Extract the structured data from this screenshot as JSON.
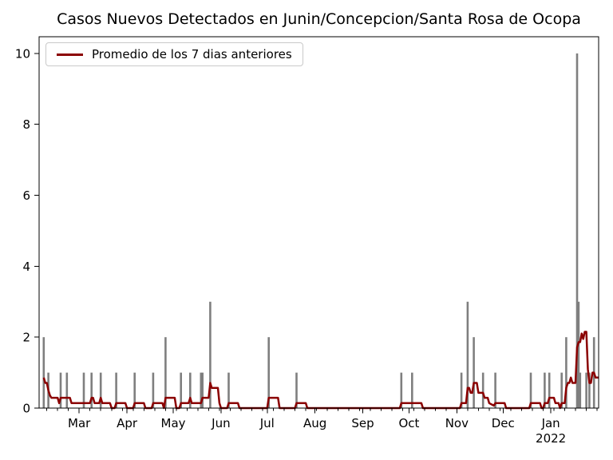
{
  "chart_data": {
    "type": "bar+line",
    "title": "Casos Nuevos Detectados en Junin/Concepcion/Santa Rosa de Ocopa",
    "legend": {
      "position": "upper left",
      "entries": [
        "Promedio de los 7 dias anteriores"
      ]
    },
    "grid": false,
    "x_axis": {
      "start": "2021-02-03",
      "end": "2022-02-01",
      "minor_tick_start": "2021-02-08",
      "minor_tick_interval_days": 7,
      "month_ticks": [
        {
          "date": "2021-03-01",
          "label": "Mar"
        },
        {
          "date": "2021-04-01",
          "label": "Apr"
        },
        {
          "date": "2021-05-01",
          "label": "May"
        },
        {
          "date": "2021-06-01",
          "label": "Jun"
        },
        {
          "date": "2021-07-01",
          "label": "Jul"
        },
        {
          "date": "2021-08-01",
          "label": "Aug"
        },
        {
          "date": "2021-09-01",
          "label": "Sep"
        },
        {
          "date": "2021-10-01",
          "label": "Oct"
        },
        {
          "date": "2021-11-01",
          "label": "Nov"
        },
        {
          "date": "2021-12-01",
          "label": "Dec"
        },
        {
          "date": "2022-01-01",
          "label": "Jan",
          "sublabel": "2022"
        }
      ]
    },
    "y_axis": {
      "min": 0,
      "max": 10.47,
      "ticks": [
        0,
        2,
        4,
        6,
        8,
        10
      ]
    },
    "series": [
      {
        "name": "casos_nuevos_diarios",
        "type": "bar",
        "color": "#7f7f7f",
        "points": [
          [
            "2021-02-06",
            2
          ],
          [
            "2021-02-09",
            1
          ],
          [
            "2021-02-17",
            1
          ],
          [
            "2021-02-21",
            1
          ],
          [
            "2021-03-04",
            1
          ],
          [
            "2021-03-09",
            1
          ],
          [
            "2021-03-15",
            1
          ],
          [
            "2021-03-25",
            1
          ],
          [
            "2021-04-06",
            1
          ],
          [
            "2021-04-18",
            1
          ],
          [
            "2021-04-26",
            2
          ],
          [
            "2021-05-06",
            1
          ],
          [
            "2021-05-12",
            1
          ],
          [
            "2021-05-19",
            1
          ],
          [
            "2021-05-20",
            1
          ],
          [
            "2021-05-25",
            3
          ],
          [
            "2021-06-06",
            1
          ],
          [
            "2021-07-02",
            2
          ],
          [
            "2021-07-20",
            1
          ],
          [
            "2021-09-26",
            1
          ],
          [
            "2021-10-03",
            1
          ],
          [
            "2021-11-04",
            1
          ],
          [
            "2021-11-08",
            3
          ],
          [
            "2021-11-12",
            2
          ],
          [
            "2021-11-18",
            1
          ],
          [
            "2021-11-26",
            1
          ],
          [
            "2021-12-19",
            1
          ],
          [
            "2021-12-28",
            1
          ],
          [
            "2021-12-31",
            1
          ],
          [
            "2022-01-08",
            1
          ],
          [
            "2022-01-11",
            2
          ],
          [
            "2022-01-18",
            10
          ],
          [
            "2022-01-19",
            3
          ],
          [
            "2022-01-20",
            1
          ],
          [
            "2022-01-24",
            1
          ],
          [
            "2022-01-26",
            1
          ],
          [
            "2022-01-29",
            2
          ]
        ]
      },
      {
        "name": "promedio_7_dias_anteriores",
        "type": "line",
        "color": "#8b0000",
        "points": [
          [
            "2021-02-06",
            0.86
          ],
          [
            "2021-02-07",
            0.71
          ],
          [
            "2021-02-08",
            0.71
          ],
          [
            "2021-02-09",
            0.5
          ],
          [
            "2021-02-10",
            0.36
          ],
          [
            "2021-02-11",
            0.29
          ],
          [
            "2021-02-15",
            0.29
          ],
          [
            "2021-02-16",
            0.14
          ],
          [
            "2021-02-17",
            0.29
          ],
          [
            "2021-02-23",
            0.29
          ],
          [
            "2021-02-24",
            0.14
          ],
          [
            "2021-03-08",
            0.14
          ],
          [
            "2021-03-09",
            0.29
          ],
          [
            "2021-03-10",
            0.29
          ],
          [
            "2021-03-11",
            0.14
          ],
          [
            "2021-03-14",
            0.14
          ],
          [
            "2021-03-15",
            0.29
          ],
          [
            "2021-03-16",
            0.14
          ],
          [
            "2021-03-21",
            0.14
          ],
          [
            "2021-03-22",
            0
          ],
          [
            "2021-03-24",
            0
          ],
          [
            "2021-03-25",
            0.14
          ],
          [
            "2021-03-31",
            0.14
          ],
          [
            "2021-04-01",
            0
          ],
          [
            "2021-04-05",
            0
          ],
          [
            "2021-04-06",
            0.14
          ],
          [
            "2021-04-12",
            0.14
          ],
          [
            "2021-04-13",
            0
          ],
          [
            "2021-04-17",
            0
          ],
          [
            "2021-04-18",
            0.14
          ],
          [
            "2021-04-24",
            0.14
          ],
          [
            "2021-04-25",
            0
          ],
          [
            "2021-04-26",
            0.29
          ],
          [
            "2021-05-02",
            0.29
          ],
          [
            "2021-05-03",
            0
          ],
          [
            "2021-05-05",
            0
          ],
          [
            "2021-05-06",
            0.14
          ],
          [
            "2021-05-11",
            0.14
          ],
          [
            "2021-05-12",
            0.29
          ],
          [
            "2021-05-13",
            0.14
          ],
          [
            "2021-05-18",
            0.14
          ],
          [
            "2021-05-19",
            0.14
          ],
          [
            "2021-05-20",
            0.29
          ],
          [
            "2021-05-24",
            0.29
          ],
          [
            "2021-05-25",
            0.71
          ],
          [
            "2021-05-26",
            0.57
          ],
          [
            "2021-05-30",
            0.57
          ],
          [
            "2021-05-31",
            0.14
          ],
          [
            "2021-06-01",
            0
          ],
          [
            "2021-06-05",
            0
          ],
          [
            "2021-06-06",
            0.14
          ],
          [
            "2021-06-12",
            0.14
          ],
          [
            "2021-06-13",
            0
          ],
          [
            "2021-07-01",
            0
          ],
          [
            "2021-07-02",
            0.29
          ],
          [
            "2021-07-08",
            0.29
          ],
          [
            "2021-07-09",
            0
          ],
          [
            "2021-07-19",
            0
          ],
          [
            "2021-07-20",
            0.14
          ],
          [
            "2021-07-26",
            0.14
          ],
          [
            "2021-07-27",
            0
          ],
          [
            "2021-09-25",
            0
          ],
          [
            "2021-09-26",
            0.14
          ],
          [
            "2021-10-09",
            0.14
          ],
          [
            "2021-10-10",
            0
          ],
          [
            "2021-11-03",
            0
          ],
          [
            "2021-11-04",
            0.14
          ],
          [
            "2021-11-07",
            0.14
          ],
          [
            "2021-11-08",
            0.57
          ],
          [
            "2021-11-09",
            0.57
          ],
          [
            "2021-11-10",
            0.43
          ],
          [
            "2021-11-11",
            0.43
          ],
          [
            "2021-11-12",
            0.71
          ],
          [
            "2021-11-14",
            0.71
          ],
          [
            "2021-11-15",
            0.43
          ],
          [
            "2021-11-18",
            0.43
          ],
          [
            "2021-11-19",
            0.29
          ],
          [
            "2021-11-21",
            0.29
          ],
          [
            "2021-11-22",
            0.14
          ],
          [
            "2021-11-25",
            0.07
          ],
          [
            "2021-11-26",
            0.14
          ],
          [
            "2021-12-02",
            0.14
          ],
          [
            "2021-12-03",
            0
          ],
          [
            "2021-12-18",
            0
          ],
          [
            "2021-12-19",
            0.14
          ],
          [
            "2021-12-25",
            0.14
          ],
          [
            "2021-12-26",
            0
          ],
          [
            "2021-12-27",
            0
          ],
          [
            "2021-12-28",
            0.14
          ],
          [
            "2021-12-30",
            0.14
          ],
          [
            "2021-12-31",
            0.29
          ],
          [
            "2022-01-03",
            0.29
          ],
          [
            "2022-01-04",
            0.14
          ],
          [
            "2022-01-06",
            0.14
          ],
          [
            "2022-01-07",
            0
          ],
          [
            "2022-01-08",
            0.14
          ],
          [
            "2022-01-10",
            0.14
          ],
          [
            "2022-01-11",
            0.57
          ],
          [
            "2022-01-12",
            0.71
          ],
          [
            "2022-01-13",
            0.71
          ],
          [
            "2022-01-14",
            0.86
          ],
          [
            "2022-01-15",
            0.71
          ],
          [
            "2022-01-17",
            0.71
          ],
          [
            "2022-01-18",
            1.71
          ],
          [
            "2022-01-19",
            1.86
          ],
          [
            "2022-01-20",
            1.86
          ],
          [
            "2022-01-21",
            2.1
          ],
          [
            "2022-01-22",
            1.95
          ],
          [
            "2022-01-23",
            2.15
          ],
          [
            "2022-01-24",
            2.15
          ],
          [
            "2022-01-25",
            1.1
          ],
          [
            "2022-01-26",
            0.71
          ],
          [
            "2022-01-27",
            0.71
          ],
          [
            "2022-01-28",
            1.0
          ],
          [
            "2022-01-29",
            1.0
          ],
          [
            "2022-01-30",
            0.86
          ],
          [
            "2022-02-01",
            0.86
          ]
        ]
      }
    ]
  }
}
